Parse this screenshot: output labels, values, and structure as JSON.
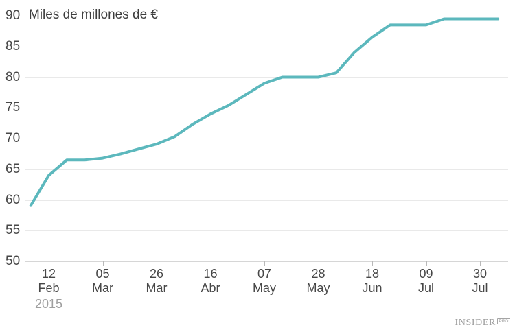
{
  "title": {
    "text": "Miles de millones de €"
  },
  "logo": {
    "name": "INSIDER",
    "badge": "PRO"
  },
  "colors": {
    "line": "#5cb8bd",
    "grid": "#e9e9e9",
    "axis": "#d6d6d6",
    "tick": "#b9b9b9",
    "label": "#474747",
    "title": "#3d3d3d",
    "muted": "#9f9f9f"
  },
  "chart_data": {
    "type": "line",
    "title": "Miles de millones de €",
    "ylabel": "Miles de millones de €",
    "xlabel": "",
    "ylim": [
      50,
      90
    ],
    "yticks": [
      90,
      85,
      80,
      75,
      70,
      65,
      60,
      55,
      50
    ],
    "grid": "horizontal-only",
    "legend": "none",
    "x_note": "weekly data points starting one week before the first labeled tick (12 Feb 2015); ticks every 3 weeks",
    "values": [
      59.1,
      64,
      66.5,
      66.5,
      66.8,
      67.5,
      68.3,
      69.1,
      70.3,
      72.3,
      74,
      75.4,
      77.2,
      79,
      80,
      80,
      80,
      80.7,
      84,
      86.5,
      88.5,
      88.5,
      88.5,
      89.5,
      89.5,
      89.5,
      89.5
    ],
    "xticks": [
      {
        "index": 1,
        "day": "12",
        "month": "Feb"
      },
      {
        "index": 4,
        "day": "05",
        "month": "Mar"
      },
      {
        "index": 7,
        "day": "26",
        "month": "Mar"
      },
      {
        "index": 10,
        "day": "16",
        "month": "Abr"
      },
      {
        "index": 13,
        "day": "07",
        "month": "May"
      },
      {
        "index": 16,
        "day": "28",
        "month": "May"
      },
      {
        "index": 19,
        "day": "18",
        "month": "Jun"
      },
      {
        "index": 22,
        "day": "09",
        "month": "Jul"
      },
      {
        "index": 25,
        "day": "30",
        "month": "Jul"
      }
    ],
    "year": "2015"
  }
}
